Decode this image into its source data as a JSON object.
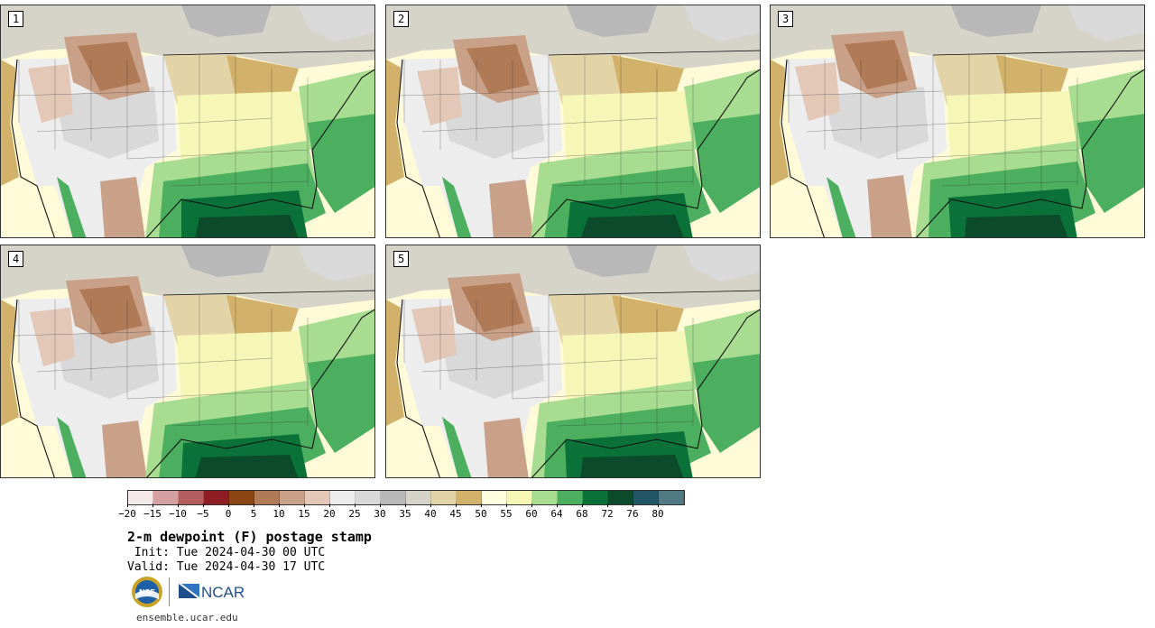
{
  "panels": [
    {
      "label": "1",
      "variant": 0
    },
    {
      "label": "2",
      "variant": 1
    },
    {
      "label": "3",
      "variant": 2
    },
    {
      "label": "4",
      "variant": 3
    },
    {
      "label": "5",
      "variant": 4
    }
  ],
  "colorbar": {
    "colors": [
      "#f3e9e9",
      "#d4a0a1",
      "#b45d5f",
      "#8f1e24",
      "#8b4513",
      "#b07a56",
      "#c9a088",
      "#e3c8b8",
      "#ededed",
      "#d9d9d9",
      "#b8b8b8",
      "#d6d4c8",
      "#e3d4a8",
      "#d2b26a",
      "#ffffe0",
      "#f7f7b5",
      "#a8dc90",
      "#4caf5f",
      "#0a7238",
      "#0b4a2a",
      "#225566",
      "#507a84"
    ],
    "tick_labels": [
      "-20",
      "-15",
      "-10",
      "-5",
      "0",
      "5",
      "10",
      "15",
      "20",
      "25",
      "30",
      "35",
      "40",
      "45",
      "50",
      "55",
      "60",
      "64",
      "68",
      "72",
      "76",
      "80"
    ]
  },
  "title": "2-m dewpoint (F) postage stamp",
  "init_text": " Init: Tue 2024-04-30 00 UTC",
  "valid_text": "Valid: Tue 2024-04-30 17 UTC",
  "logos": {
    "nsf": "NSF",
    "ncar": "NCAR"
  },
  "footer_url": "ensemble.ucar.edu"
}
